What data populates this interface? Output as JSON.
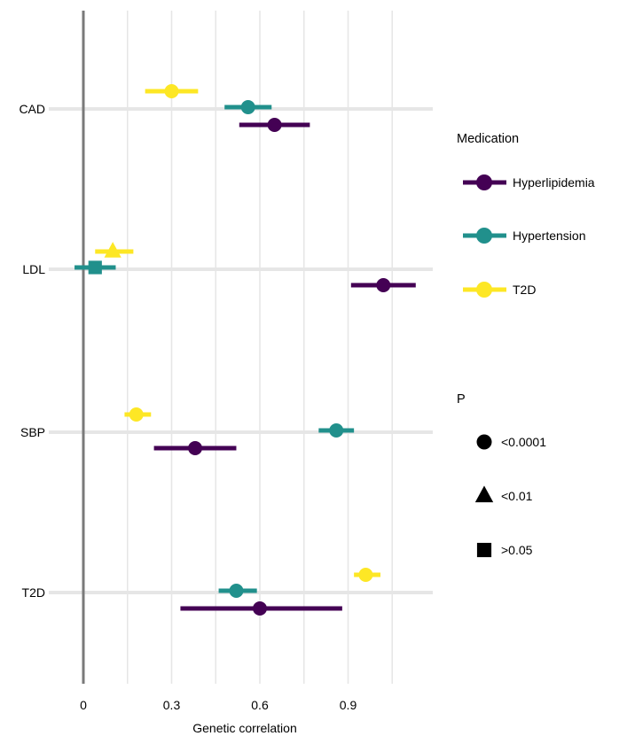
{
  "chart_data": {
    "type": "scatter",
    "subtype": "dot-and-whisker",
    "title": "",
    "xlabel": "Genetic correlation",
    "ylabel": "",
    "xticks": [
      0,
      0.3,
      0.6,
      0.9
    ],
    "xtick_labels": [
      "0",
      "0.3",
      "0.6",
      "0.9"
    ],
    "xlim": [
      -0.08,
      1.19
    ],
    "categories": [
      "CAD",
      "LDL",
      "SBP",
      "T2D"
    ],
    "grid": true,
    "reference_line_x": 0,
    "legend_placement": "right",
    "color_legend": {
      "title": "Medication",
      "items": [
        {
          "name": "Hyperlipidemia",
          "color": "#440154"
        },
        {
          "name": "Hypertension",
          "color": "#21908C"
        },
        {
          "name": "T2D",
          "color": "#FDE725"
        }
      ]
    },
    "shape_legend": {
      "title": "P",
      "items": [
        {
          "label": "<0.0001",
          "shape": "circle"
        },
        {
          "label": "<0.01",
          "shape": "triangle"
        },
        {
          "label": ">0.05",
          "shape": "square"
        }
      ]
    },
    "series": [
      {
        "name": "Hyperlipidemia",
        "points": [
          {
            "category": "CAD",
            "estimate": 0.65,
            "lower": 0.53,
            "upper": 0.77,
            "p_shape": "circle"
          },
          {
            "category": "LDL",
            "estimate": 1.02,
            "lower": 0.91,
            "upper": 1.13,
            "p_shape": "circle"
          },
          {
            "category": "SBP",
            "estimate": 0.38,
            "lower": 0.24,
            "upper": 0.52,
            "p_shape": "circle"
          },
          {
            "category": "T2D",
            "estimate": 0.6,
            "lower": 0.33,
            "upper": 0.88,
            "p_shape": "circle"
          }
        ]
      },
      {
        "name": "Hypertension",
        "points": [
          {
            "category": "CAD",
            "estimate": 0.56,
            "lower": 0.48,
            "upper": 0.64,
            "p_shape": "circle"
          },
          {
            "category": "LDL",
            "estimate": 0.04,
            "lower": -0.03,
            "upper": 0.11,
            "p_shape": "square"
          },
          {
            "category": "SBP",
            "estimate": 0.86,
            "lower": 0.8,
            "upper": 0.92,
            "p_shape": "circle"
          },
          {
            "category": "T2D",
            "estimate": 0.52,
            "lower": 0.46,
            "upper": 0.59,
            "p_shape": "circle"
          }
        ]
      },
      {
        "name": "T2D",
        "points": [
          {
            "category": "CAD",
            "estimate": 0.3,
            "lower": 0.21,
            "upper": 0.39,
            "p_shape": "circle"
          },
          {
            "category": "LDL",
            "estimate": 0.1,
            "lower": 0.04,
            "upper": 0.17,
            "p_shape": "triangle"
          },
          {
            "category": "SBP",
            "estimate": 0.18,
            "lower": 0.14,
            "upper": 0.23,
            "p_shape": "circle"
          },
          {
            "category": "T2D",
            "estimate": 0.96,
            "lower": 0.92,
            "upper": 1.01,
            "p_shape": "circle"
          }
        ]
      }
    ]
  }
}
